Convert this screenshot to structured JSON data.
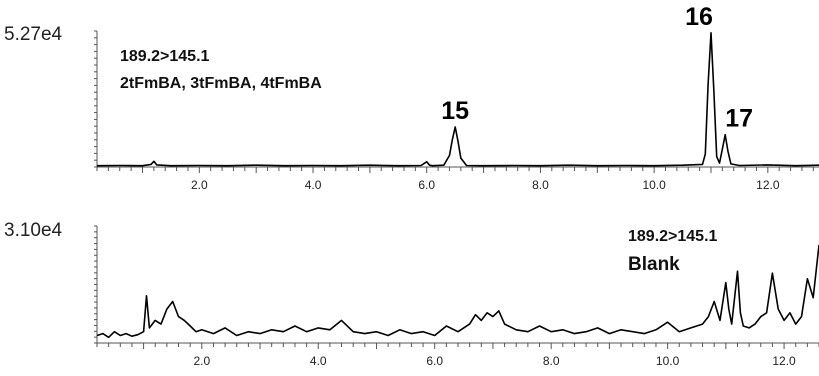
{
  "chart_data": [
    {
      "type": "line",
      "ymax_label": "5.27e4",
      "transition": "189.2>145.1",
      "compounds": "2tFmBA, 3tFmBA, 4tFmBA",
      "xlim": [
        0.2,
        12.9
      ],
      "ylim": [
        0,
        5.27
      ],
      "x_ticks": [
        "2.0",
        "4.0",
        "6.0",
        "8.0",
        "10.0",
        "12.0"
      ],
      "x_tick_values": [
        2.0,
        4.0,
        6.0,
        8.0,
        10.0,
        12.0
      ],
      "peak_labels": [
        {
          "text": "15",
          "x": 6.5,
          "y": 1.55
        },
        {
          "text": "16",
          "x": 11.0,
          "y": 5.2
        },
        {
          "text": "17",
          "x": 11.25,
          "y": 1.25
        }
      ],
      "series": [
        {
          "x": [
            0.2,
            0.6,
            1.0,
            1.15,
            1.2,
            1.25,
            1.5,
            2.0,
            2.5,
            3.0,
            3.5,
            4.0,
            4.5,
            5.0,
            5.5,
            5.9,
            6.0,
            6.05,
            6.1,
            6.3,
            6.4,
            6.45,
            6.5,
            6.55,
            6.6,
            6.7,
            7.0,
            7.5,
            8.0,
            8.5,
            9.0,
            9.5,
            10.0,
            10.5,
            10.85,
            10.9,
            10.95,
            11.0,
            11.05,
            11.1,
            11.15,
            11.2,
            11.25,
            11.3,
            11.35,
            11.5,
            12.0,
            12.5,
            12.9
          ],
          "values": [
            0.05,
            0.06,
            0.05,
            0.1,
            0.22,
            0.08,
            0.05,
            0.06,
            0.05,
            0.07,
            0.05,
            0.06,
            0.05,
            0.07,
            0.05,
            0.06,
            0.2,
            0.07,
            0.05,
            0.07,
            0.45,
            1.05,
            1.55,
            1.0,
            0.35,
            0.06,
            0.05,
            0.06,
            0.05,
            0.07,
            0.05,
            0.06,
            0.05,
            0.07,
            0.1,
            0.5,
            3.2,
            5.2,
            3.0,
            0.4,
            0.15,
            0.7,
            1.25,
            0.6,
            0.12,
            0.06,
            0.08,
            0.05,
            0.07
          ]
        }
      ]
    },
    {
      "type": "line",
      "ymax_label": "3.10e4",
      "transition": "189.2>145.1",
      "compounds": "Blank",
      "xlim": [
        0.2,
        12.6
      ],
      "ylim": [
        0,
        3.1
      ],
      "x_ticks": [
        "2.0",
        "4.0",
        "6.0",
        "8.0",
        "10.0",
        "12.0"
      ],
      "x_tick_values": [
        2.0,
        4.0,
        6.0,
        8.0,
        10.0,
        12.0
      ],
      "series": [
        {
          "x": [
            0.2,
            0.3,
            0.4,
            0.5,
            0.6,
            0.7,
            0.8,
            0.9,
            1.0,
            1.05,
            1.1,
            1.2,
            1.3,
            1.4,
            1.5,
            1.6,
            1.7,
            1.8,
            1.9,
            2.0,
            2.2,
            2.4,
            2.6,
            2.8,
            3.0,
            3.2,
            3.4,
            3.6,
            3.8,
            4.0,
            4.2,
            4.4,
            4.6,
            4.8,
            5.0,
            5.2,
            5.4,
            5.6,
            5.8,
            6.0,
            6.2,
            6.4,
            6.6,
            6.7,
            6.8,
            6.9,
            7.0,
            7.1,
            7.2,
            7.4,
            7.6,
            7.8,
            8.0,
            8.2,
            8.4,
            8.6,
            8.8,
            9.0,
            9.2,
            9.4,
            9.6,
            9.8,
            10.0,
            10.2,
            10.4,
            10.6,
            10.7,
            10.8,
            10.9,
            11.0,
            11.05,
            11.1,
            11.2,
            11.25,
            11.3,
            11.4,
            11.5,
            11.6,
            11.7,
            11.8,
            11.9,
            12.0,
            12.1,
            12.2,
            12.3,
            12.4,
            12.5,
            12.6
          ],
          "values": [
            0.2,
            0.25,
            0.15,
            0.3,
            0.2,
            0.25,
            0.18,
            0.22,
            0.3,
            1.25,
            0.4,
            0.6,
            0.5,
            0.9,
            1.1,
            0.7,
            0.6,
            0.45,
            0.3,
            0.35,
            0.25,
            0.4,
            0.2,
            0.3,
            0.25,
            0.35,
            0.3,
            0.45,
            0.3,
            0.4,
            0.35,
            0.6,
            0.3,
            0.25,
            0.3,
            0.2,
            0.35,
            0.25,
            0.3,
            0.2,
            0.45,
            0.3,
            0.5,
            0.75,
            0.6,
            0.8,
            0.7,
            0.85,
            0.5,
            0.35,
            0.3,
            0.45,
            0.3,
            0.35,
            0.25,
            0.3,
            0.4,
            0.25,
            0.35,
            0.3,
            0.25,
            0.35,
            0.55,
            0.3,
            0.4,
            0.5,
            0.7,
            1.1,
            0.6,
            1.6,
            0.9,
            0.5,
            1.9,
            0.8,
            0.45,
            0.4,
            0.5,
            0.7,
            0.8,
            1.85,
            0.9,
            0.6,
            0.8,
            0.5,
            0.7,
            1.7,
            1.2,
            2.6
          ]
        }
      ]
    }
  ]
}
